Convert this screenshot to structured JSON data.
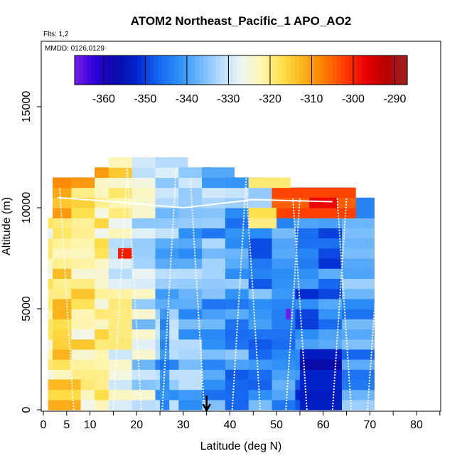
{
  "chart_data": {
    "type": "heatmap",
    "title": "ATOM2 Northeast_Pacific_1 APO_AO2",
    "subtitle_flights": "Flts: 1,2",
    "subtitle_dates": "MMDD: 0126,0129",
    "xlabel": "Latitude (deg N)",
    "ylabel": "Altitude (m)",
    "xlim": [
      0,
      85
    ],
    "ylim": [
      0,
      17500
    ],
    "x_ticks": [
      0,
      5,
      10,
      20,
      30,
      40,
      50,
      60,
      70,
      80
    ],
    "x_tick_labels": [
      "0",
      "5",
      "10",
      "20",
      "30",
      "40",
      "50",
      "60",
      "70",
      "80"
    ],
    "y_ticks": [
      0,
      5000,
      10000,
      15000
    ],
    "y_tick_labels": [
      "0",
      "5000",
      "10000",
      "15000"
    ],
    "colorbar": {
      "range": [
        -367,
        -287
      ],
      "ticks": [
        -360,
        -350,
        -340,
        -330,
        -320,
        -310,
        -300,
        -290
      ],
      "tick_labels": [
        "-360",
        "-350",
        "-340",
        "-330",
        "-320",
        "-310",
        "-300",
        "-290"
      ],
      "colors": [
        "#7a1ce8",
        "#2b00d8",
        "#0a0aa8",
        "#0025cf",
        "#1565f0",
        "#2c8ff7",
        "#6cb6fb",
        "#b6dcff",
        "#eef6f3",
        "#fff6b0",
        "#ffe04a",
        "#fbb11a",
        "#fb7d00",
        "#ff3c00",
        "#ea0000",
        "#b80000",
        "#9c2222"
      ]
    },
    "marker_latitude": 35,
    "grid": false,
    "altitude_bin_m": 500,
    "columns": [
      {
        "lat_from": 1,
        "lat_to": 6,
        "base": -322,
        "hmax": 9500
      },
      {
        "lat_from": 2,
        "lat_to": 9,
        "base": -318,
        "hmax": 11500
      },
      {
        "lat_from": 6,
        "lat_to": 13,
        "base": -320,
        "hmax": 11500
      },
      {
        "lat_from": 11,
        "lat_to": 17,
        "base": -322,
        "hmax": 12000
      },
      {
        "lat_from": 14,
        "lat_to": 21,
        "base": -325,
        "hmax": 12500
      },
      {
        "lat_from": 19,
        "lat_to": 26,
        "base": -330,
        "hmax": 12500
      },
      {
        "lat_from": 24,
        "lat_to": 31,
        "base": -337,
        "hmax": 12500
      },
      {
        "lat_from": 29,
        "lat_to": 36,
        "base": -338,
        "hmax": 12000
      },
      {
        "lat_from": 34,
        "lat_to": 41,
        "base": -339,
        "hmax": 12000
      },
      {
        "lat_from": 39,
        "lat_to": 46,
        "base": -341,
        "hmax": 11500
      },
      {
        "lat_from": 44,
        "lat_to": 51,
        "base": -342,
        "hmax": 11500
      },
      {
        "lat_from": 49,
        "lat_to": 56,
        "base": -344,
        "hmax": 11000
      },
      {
        "lat_from": 54,
        "lat_to": 61,
        "base": -346,
        "hmax": 11000
      },
      {
        "lat_from": 59,
        "lat_to": 66,
        "base": -344,
        "hmax": 11000
      },
      {
        "lat_from": 64,
        "lat_to": 71,
        "base": -340,
        "hmax": 10500
      }
    ],
    "patches": [
      {
        "lat_from": 49,
        "lat_to": 67,
        "alt_from": 9500,
        "alt_to": 11000,
        "value": -303
      },
      {
        "lat_from": 57,
        "lat_to": 63,
        "alt_from": 10000,
        "alt_to": 10500,
        "value": -296
      },
      {
        "lat_from": 44,
        "lat_to": 50,
        "alt_from": 9000,
        "alt_to": 10000,
        "value": -318
      },
      {
        "lat_from": 16,
        "lat_to": 19,
        "alt_from": 7500,
        "alt_to": 8000,
        "value": -300
      },
      {
        "lat_from": 44,
        "lat_to": 53,
        "alt_from": 11000,
        "alt_to": 11500,
        "value": -321
      },
      {
        "lat_from": 52,
        "lat_to": 53,
        "alt_from": 4500,
        "alt_to": 5000,
        "value": -365
      },
      {
        "lat_from": 1,
        "lat_to": 8,
        "alt_from": 0,
        "alt_to": 1500,
        "value": -314
      },
      {
        "lat_from": 25,
        "lat_to": 27,
        "alt_from": 0,
        "alt_to": 5000,
        "value": -343
      },
      {
        "lat_from": 55,
        "lat_to": 64,
        "alt_from": 0,
        "alt_to": 3000,
        "value": -355
      }
    ],
    "flight_track_latitudes": [
      6.5,
      15,
      21,
      25.5,
      34.5,
      40.5,
      46.5,
      52,
      56.5,
      62,
      66,
      69.5
    ]
  }
}
